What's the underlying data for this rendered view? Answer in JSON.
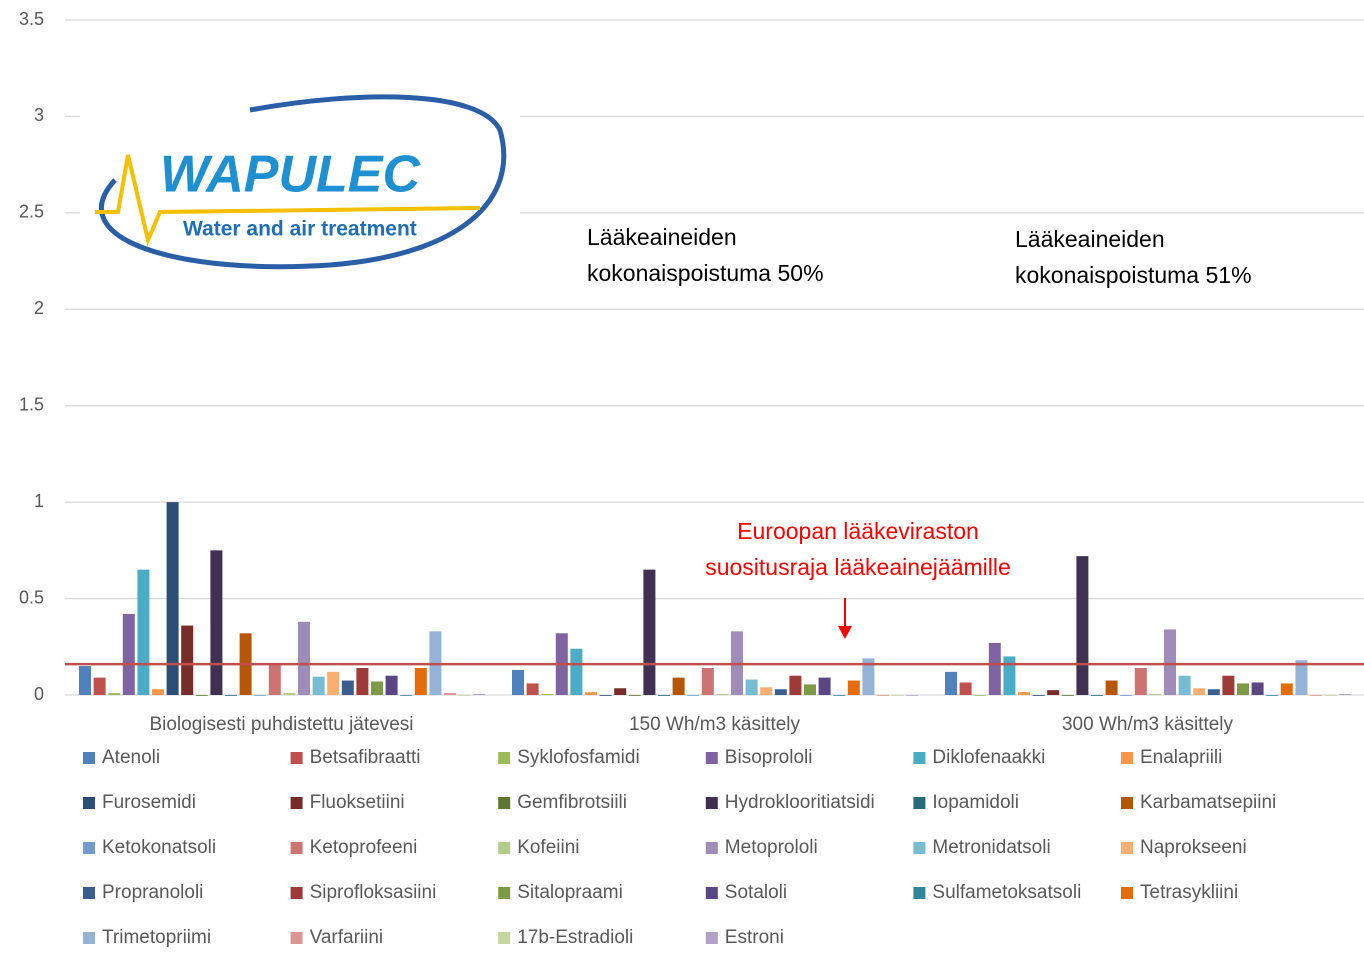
{
  "chart_data": {
    "type": "bar",
    "categories": [
      "Biologisesti puhdistettu jätevesi",
      "150 Wh/m3 käsittely",
      "300 Wh/m3 käsittely"
    ],
    "series": [
      {
        "name": "Atenoli",
        "color": "#4f81bd",
        "values": [
          0.15,
          0.13,
          0.12
        ]
      },
      {
        "name": "Betsafibraatti",
        "color": "#c0504d",
        "values": [
          0.09,
          0.06,
          0.065
        ]
      },
      {
        "name": "Syklofosfamidi",
        "color": "#9bbb59",
        "values": [
          0.01,
          0.005,
          0
        ]
      },
      {
        "name": "Bisoprololi",
        "color": "#8064a2",
        "values": [
          0.42,
          0.32,
          0.27
        ]
      },
      {
        "name": "Diklofenaakki",
        "color": "#4bacc6",
        "values": [
          0.65,
          0.24,
          0.2
        ]
      },
      {
        "name": "Enalapriili",
        "color": "#f79646",
        "values": [
          0.03,
          0.015,
          0.015
        ]
      },
      {
        "name": "Furosemidi",
        "color": "#2c4d75",
        "values": [
          1.0,
          0,
          0
        ]
      },
      {
        "name": "Fluoksetiini",
        "color": "#772c2a",
        "values": [
          0.36,
          0.035,
          0.025
        ]
      },
      {
        "name": "Gemfibrotsiili",
        "color": "#5f7530",
        "values": [
          0,
          0,
          0
        ]
      },
      {
        "name": "Hydroklooritiatsidi",
        "color": "#403152",
        "values": [
          0.75,
          0.65,
          0.72
        ]
      },
      {
        "name": "Iopamidoli",
        "color": "#276a7c",
        "values": [
          0,
          0,
          0
        ]
      },
      {
        "name": "Karbamatsepiini",
        "color": "#b65708",
        "values": [
          0.32,
          0.09,
          0.075
        ]
      },
      {
        "name": "Ketokonatsoli",
        "color": "#729aca",
        "values": [
          0,
          0,
          0
        ]
      },
      {
        "name": "Ketoprofeeni",
        "color": "#cd7371",
        "values": [
          0.16,
          0.14,
          0.14
        ]
      },
      {
        "name": "Kofeiini",
        "color": "#b3cd88",
        "values": [
          0.01,
          0.005,
          0.005
        ]
      },
      {
        "name": "Metoprololi",
        "color": "#9f8cb8",
        "values": [
          0.38,
          0.33,
          0.34
        ]
      },
      {
        "name": "Metronidatsoli",
        "color": "#77bcd2",
        "values": [
          0.095,
          0.08,
          0.1
        ]
      },
      {
        "name": "Naprokseeni",
        "color": "#f9ae72",
        "values": [
          0.12,
          0.04,
          0.035
        ]
      },
      {
        "name": "Propranololi",
        "color": "#3a5f8f",
        "values": [
          0.075,
          0.03,
          0.03
        ]
      },
      {
        "name": "Siprofloksasiini",
        "color": "#9e3a38",
        "values": [
          0.14,
          0.1,
          0.1
        ]
      },
      {
        "name": "Sitalopraami",
        "color": "#7d9a47",
        "values": [
          0.07,
          0.055,
          0.06
        ]
      },
      {
        "name": "Sotaloli",
        "color": "#5a4680",
        "values": [
          0.1,
          0.09,
          0.065
        ]
      },
      {
        "name": "Sulfametoksatsoli",
        "color": "#31859c",
        "values": [
          0,
          0,
          0
        ]
      },
      {
        "name": "Tetrasykliini",
        "color": "#e46c0a",
        "values": [
          0.14,
          0.075,
          0.06
        ]
      },
      {
        "name": "Trimetopriimi",
        "color": "#95b3d7",
        "values": [
          0.33,
          0.19,
          0.18
        ]
      },
      {
        "name": "Varfariini",
        "color": "#d99694",
        "values": [
          0.01,
          0,
          0
        ]
      },
      {
        "name": "17b-Estradioli",
        "color": "#c3d69b",
        "values": [
          0,
          0,
          0
        ]
      },
      {
        "name": "Estroni",
        "color": "#b2a1c7",
        "values": [
          0.005,
          0,
          0.005
        ]
      }
    ],
    "ylim": [
      0,
      3.5
    ],
    "yticks": [
      0,
      0.5,
      1,
      1.5,
      2,
      2.5,
      3,
      3.5
    ],
    "grid": true,
    "reference_line": {
      "value": 0.16,
      "color": "#c0504d"
    },
    "annotations": [
      {
        "lines": [
          "Lääkeaineiden",
          "kokonaispoistuma 50%"
        ]
      },
      {
        "lines": [
          "Lääkeaineiden",
          "kokonaispoistuma 51%"
        ]
      },
      {
        "lines": [
          "Euroopan lääkeviraston",
          "suositusraja lääkeainejäämille"
        ],
        "color": "#ff0000"
      }
    ],
    "legend": "bottom"
  },
  "logo": {
    "name": "WAPULEC",
    "tagline": "Water and air treatment"
  }
}
